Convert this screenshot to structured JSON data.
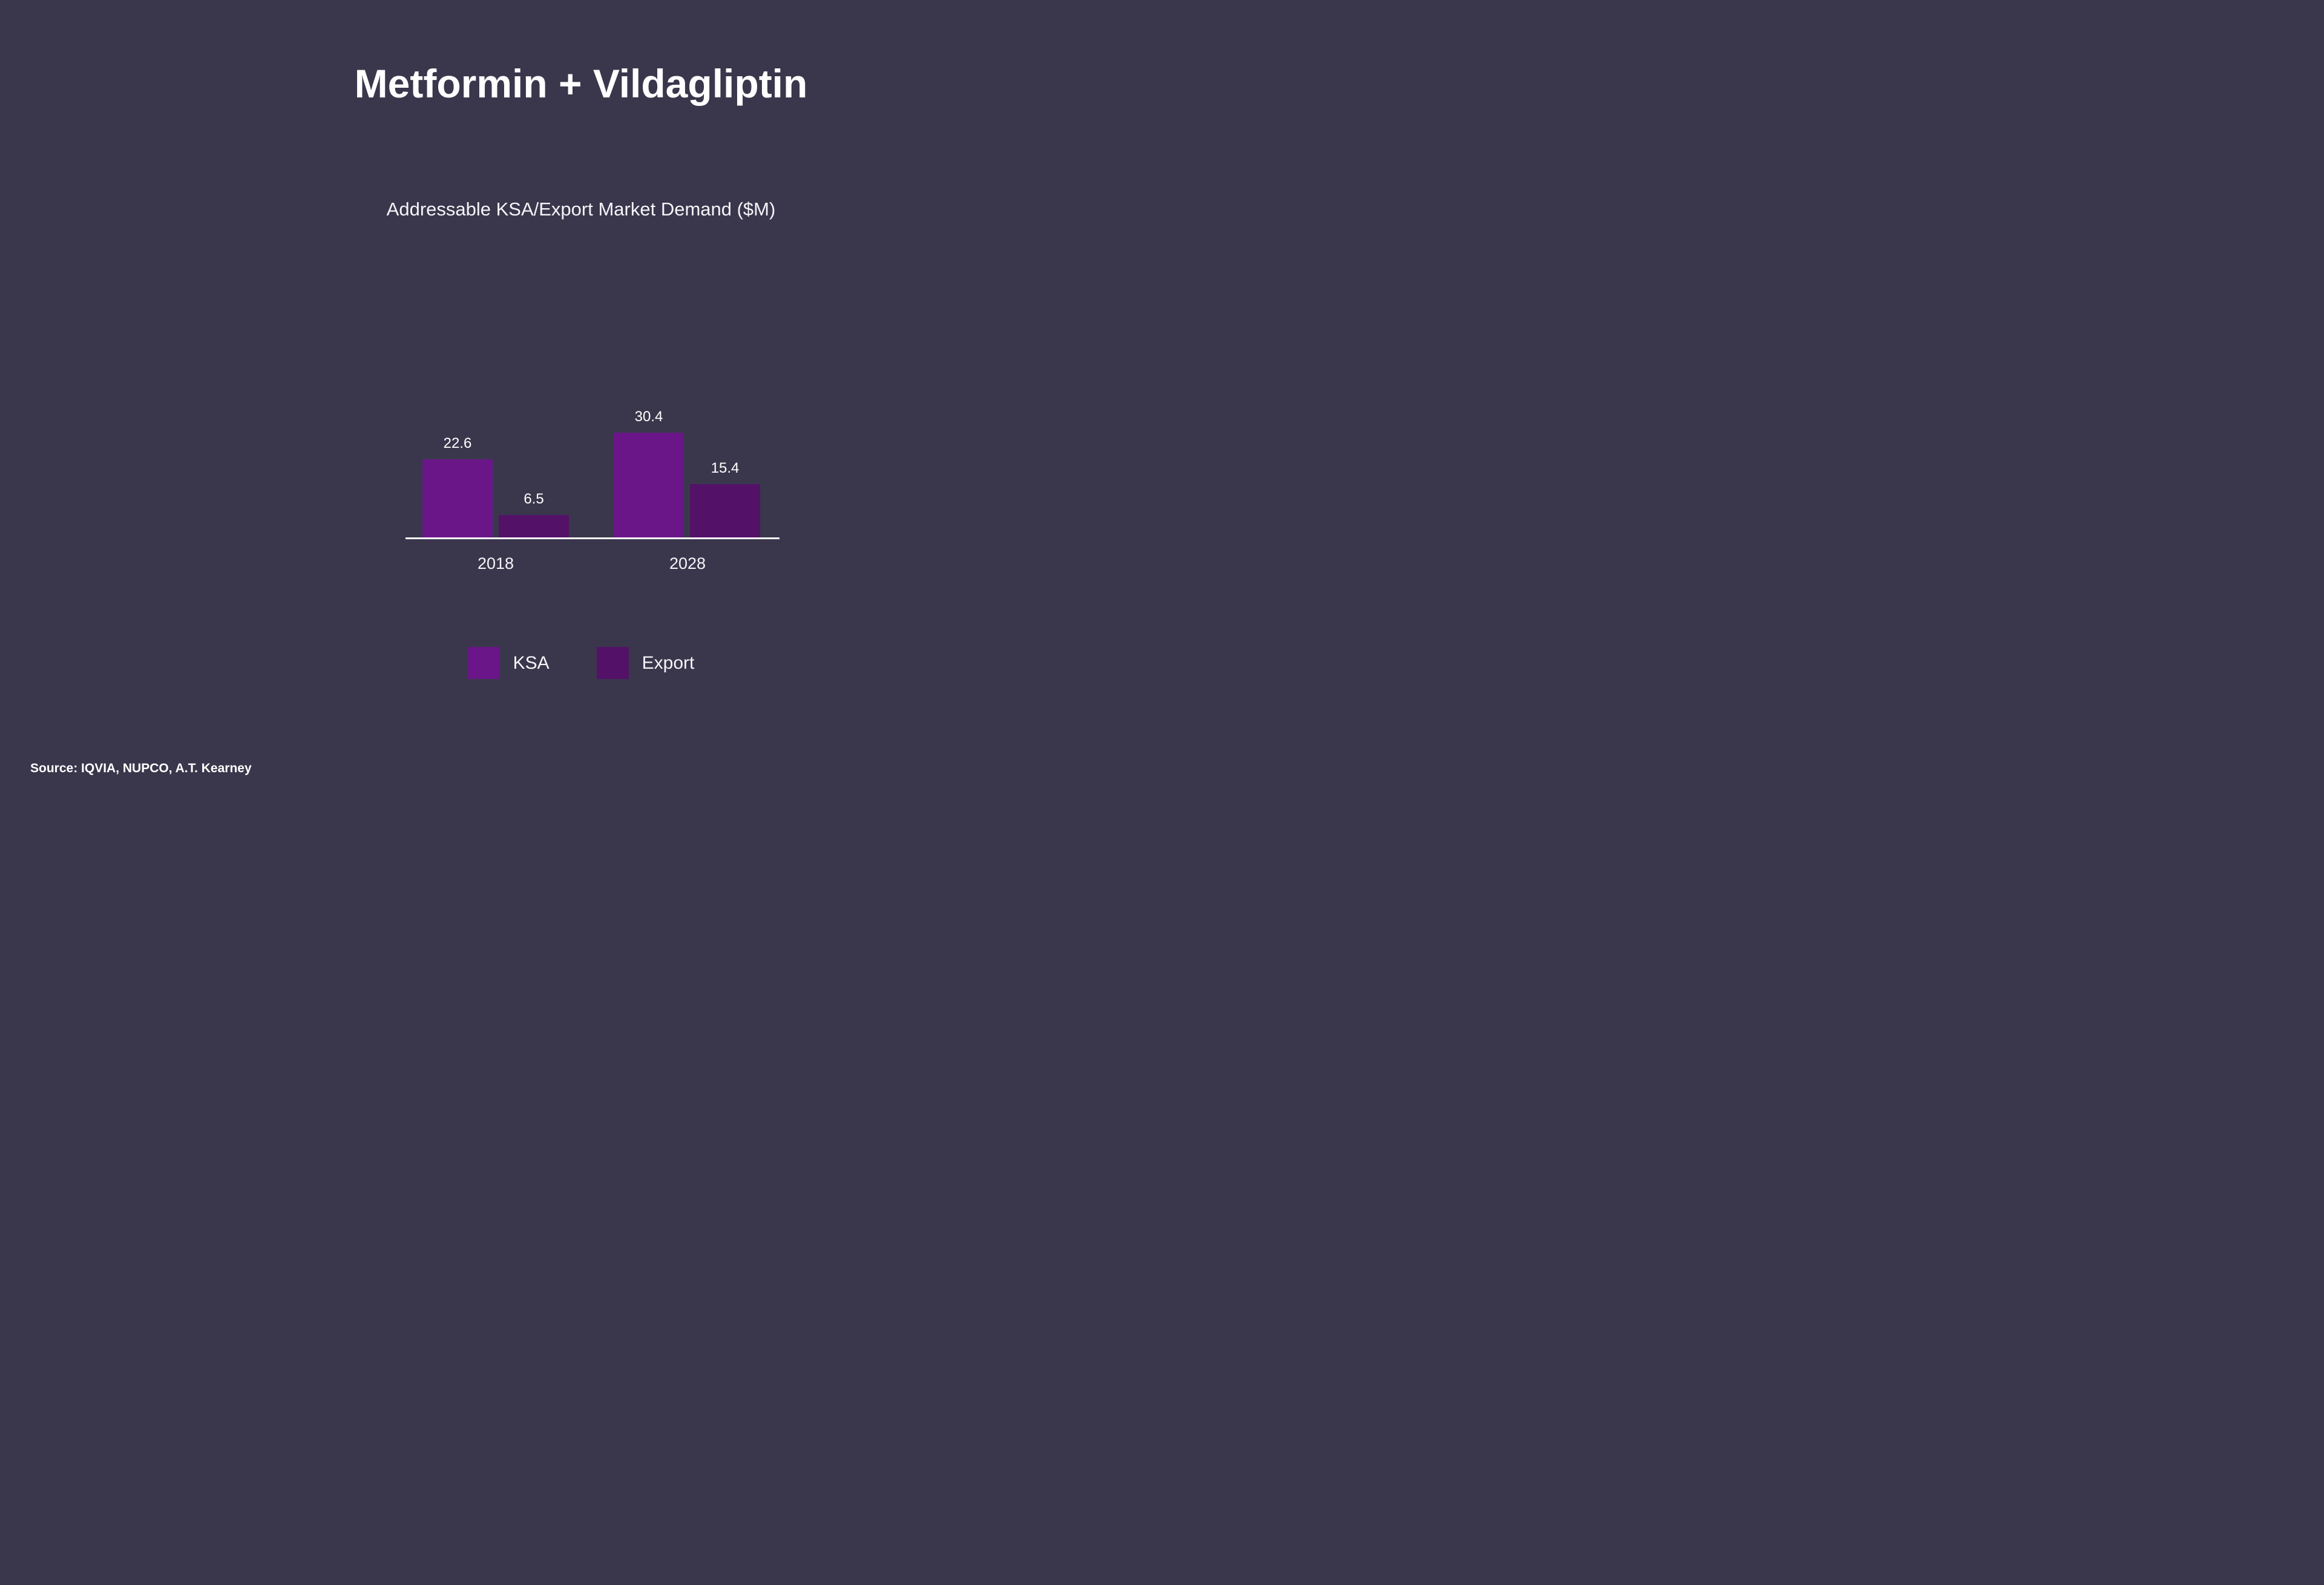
{
  "page": {
    "background_color": "#3A374C",
    "text_color": "#FFFFFF"
  },
  "title": "Metformin + Vildagliptin",
  "subtitle": "Addressable KSA/Export Market Demand ($M)",
  "source": "Source: IQVIA, NUPCO, A.T. Kearney",
  "chart_data": {
    "type": "bar",
    "title": "Addressable KSA/Export Market Demand ($M)",
    "categories": [
      "2018",
      "2028"
    ],
    "series": [
      {
        "name": "KSA",
        "color": "#6A1689",
        "values": [
          22.6,
          30.4
        ]
      },
      {
        "name": "Export",
        "color": "#541168",
        "values": [
          6.5,
          15.4
        ]
      }
    ],
    "value_labels": true,
    "ylim": [
      0,
      30.4
    ],
    "grid": false,
    "axis_line_color": "#FFFFFF",
    "legend_position": "bottom"
  }
}
